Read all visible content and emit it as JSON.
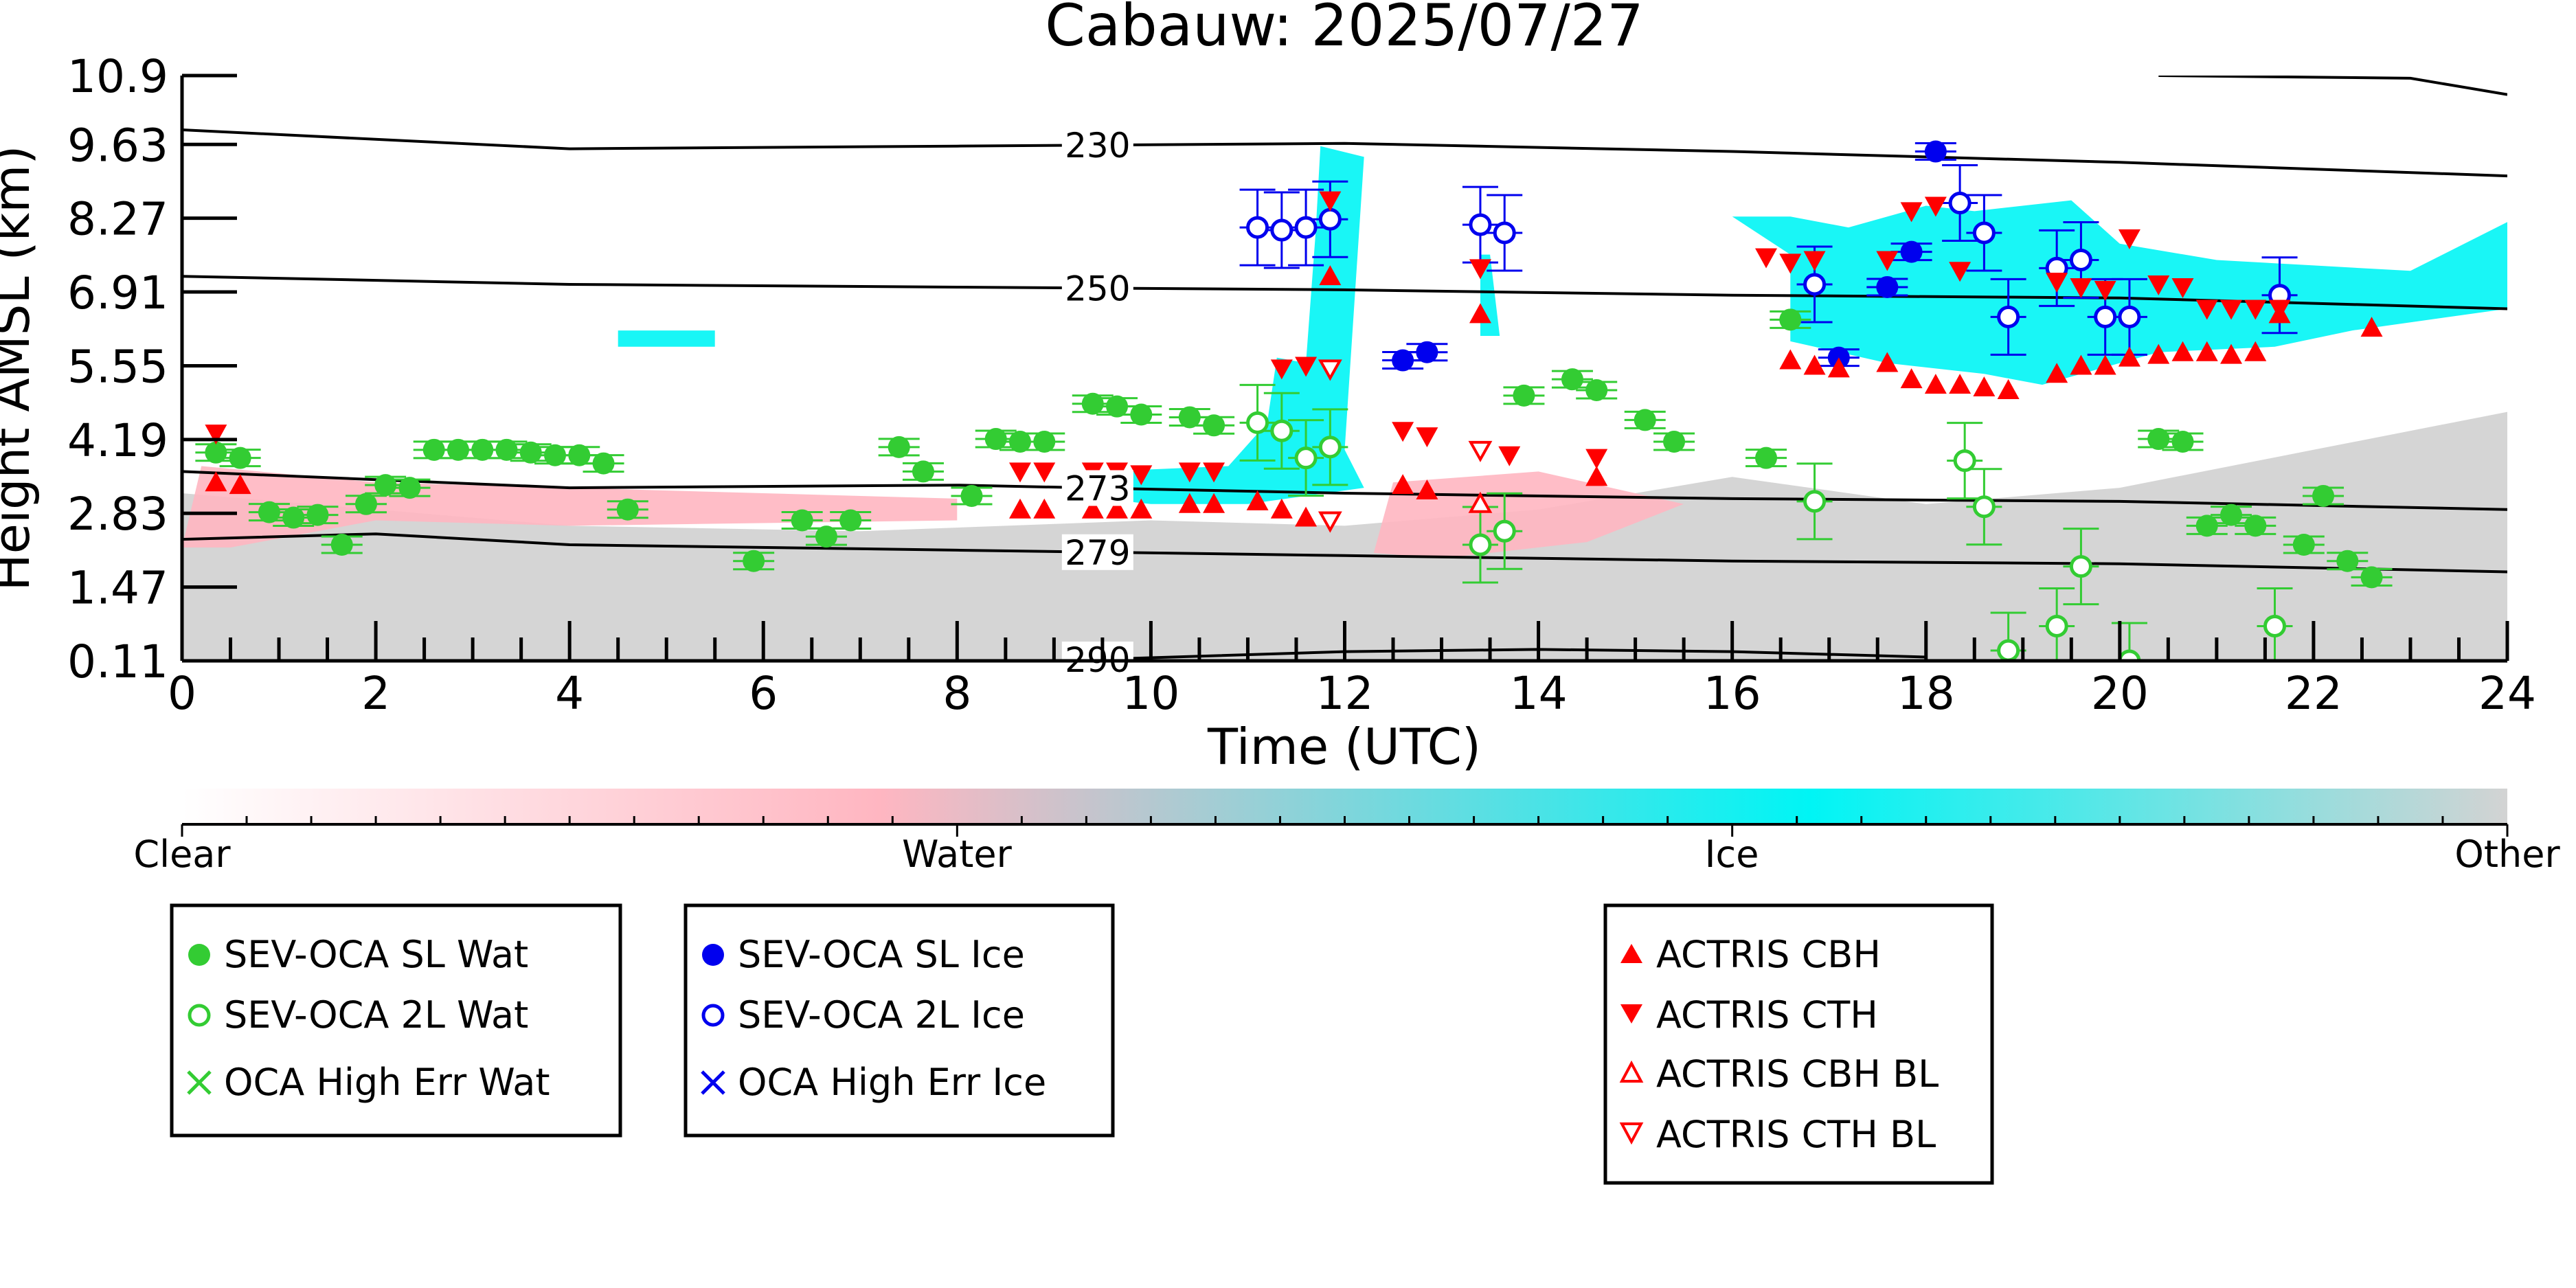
{
  "chart_data": {
    "type": "scatter",
    "title": "Cabauw: 2025/07/27",
    "xlabel": "Time (UTC)",
    "ylabel": "Height AMSL (km)",
    "xlim": [
      0,
      24
    ],
    "ylim": [
      0.11,
      10.9
    ],
    "x_ticks": [
      "0",
      "2",
      "4",
      "6",
      "8",
      "10",
      "12",
      "14",
      "16",
      "18",
      "20",
      "22",
      "24"
    ],
    "y_ticks": [
      "0.11",
      "1.47",
      "2.83",
      "4.19",
      "5.55",
      "6.91",
      "8.27",
      "9.63",
      "10.9"
    ],
    "colorbar": {
      "labels": [
        "Clear",
        "Water",
        "Ice",
        "Other"
      ],
      "stops": [
        "#ffffff",
        "#ffb6c1",
        "#00f5f5",
        "#d3d3d3"
      ]
    },
    "contours": [
      {
        "label": "230",
        "points": [
          [
            0,
            9.9
          ],
          [
            4,
            9.55
          ],
          [
            8,
            9.6
          ],
          [
            12,
            9.65
          ],
          [
            16,
            9.5
          ],
          [
            20,
            9.3
          ],
          [
            24,
            9.05
          ]
        ]
      },
      {
        "label": "250",
        "points": [
          [
            0,
            7.2
          ],
          [
            4,
            7.05
          ],
          [
            8,
            7.0
          ],
          [
            12,
            6.95
          ],
          [
            16,
            6.85
          ],
          [
            20,
            6.8
          ],
          [
            24,
            6.6
          ]
        ]
      },
      {
        "label": "273",
        "points": [
          [
            0,
            3.6
          ],
          [
            4,
            3.3
          ],
          [
            8,
            3.35
          ],
          [
            12,
            3.2
          ],
          [
            16,
            3.1
          ],
          [
            20,
            3.05
          ],
          [
            24,
            2.9
          ]
        ]
      },
      {
        "label": "279",
        "points": [
          [
            0,
            2.35
          ],
          [
            2,
            2.45
          ],
          [
            4,
            2.25
          ],
          [
            8,
            2.15
          ],
          [
            12,
            2.05
          ],
          [
            16,
            1.95
          ],
          [
            20,
            1.9
          ],
          [
            24,
            1.75
          ]
        ]
      },
      {
        "label": "290",
        "points": [
          [
            9,
            0.11
          ],
          [
            12,
            0.28
          ],
          [
            14,
            0.32
          ],
          [
            16,
            0.28
          ],
          [
            18,
            0.18
          ]
        ]
      },
      {
        "label": "",
        "points": [
          [
            20.4,
            10.9
          ],
          [
            23,
            10.85
          ],
          [
            24,
            10.55
          ]
        ]
      }
    ],
    "cloud_regions": [
      {
        "kind": "Other",
        "color": "#d3d3d3",
        "points": [
          [
            0,
            0.11
          ],
          [
            0,
            3.2
          ],
          [
            2,
            2.9
          ],
          [
            4,
            2.6
          ],
          [
            7,
            2.5
          ],
          [
            10,
            2.7
          ],
          [
            12,
            2.6
          ],
          [
            14,
            2.9
          ],
          [
            16,
            3.5
          ],
          [
            18,
            3.0
          ],
          [
            20,
            3.3
          ],
          [
            22,
            4.0
          ],
          [
            24,
            4.7
          ],
          [
            24,
            0.11
          ]
        ]
      },
      {
        "kind": "Water",
        "color": "#ffb6c1",
        "points": [
          [
            0,
            2.2
          ],
          [
            0.2,
            3.7
          ],
          [
            2,
            3.4
          ],
          [
            4,
            3.3
          ],
          [
            6,
            3.2
          ],
          [
            8,
            3.1
          ],
          [
            8,
            2.7
          ],
          [
            4,
            2.6
          ],
          [
            2,
            2.7
          ],
          [
            0.5,
            2.2
          ]
        ]
      },
      {
        "kind": "Water",
        "color": "#ffb6c1",
        "points": [
          [
            12.3,
            2.1
          ],
          [
            12.5,
            3.4
          ],
          [
            14,
            3.6
          ],
          [
            15.5,
            3.0
          ],
          [
            14.5,
            2.3
          ],
          [
            13,
            2.0
          ]
        ]
      },
      {
        "kind": "Ice",
        "color": "#00f5f5",
        "points": [
          [
            4.5,
            5.9
          ],
          [
            4.5,
            6.2
          ],
          [
            5.5,
            6.2
          ],
          [
            5.5,
            5.9
          ]
        ]
      },
      {
        "kind": "Ice",
        "color": "#00f5f5",
        "points": [
          [
            9.5,
            3.1
          ],
          [
            9.5,
            3.6
          ],
          [
            10.8,
            3.7
          ],
          [
            11.2,
            4.5
          ],
          [
            11.3,
            5.7
          ],
          [
            11.6,
            5.6
          ],
          [
            11.7,
            8.0
          ],
          [
            11.75,
            9.6
          ],
          [
            12.2,
            9.4
          ],
          [
            12.0,
            4.0
          ],
          [
            12.2,
            3.3
          ],
          [
            11.0,
            3.0
          ],
          [
            10.0,
            3.0
          ]
        ]
      },
      {
        "kind": "Ice",
        "color": "#00f5f5",
        "points": [
          [
            13.4,
            6.1
          ],
          [
            13.4,
            7.6
          ],
          [
            13.5,
            7.6
          ],
          [
            13.6,
            6.1
          ]
        ]
      },
      {
        "kind": "Ice",
        "color": "#00f5f5",
        "points": [
          [
            16.0,
            8.3
          ],
          [
            16.6,
            7.6
          ],
          [
            16.6,
            6.0
          ],
          [
            17.6,
            5.6
          ],
          [
            18.6,
            5.4
          ],
          [
            19.2,
            5.2
          ],
          [
            20.4,
            5.8
          ],
          [
            21.6,
            5.9
          ],
          [
            22.4,
            6.2
          ],
          [
            24,
            6.6
          ],
          [
            24,
            8.2
          ],
          [
            23,
            7.3
          ],
          [
            22,
            7.4
          ],
          [
            21,
            7.5
          ],
          [
            20,
            7.8
          ],
          [
            19.5,
            8.6
          ],
          [
            18.5,
            8.4
          ],
          [
            18.0,
            8.5
          ],
          [
            17.2,
            8.1
          ],
          [
            16.6,
            8.3
          ]
        ]
      }
    ],
    "series": [
      {
        "name": "SEV-OCA SL Wat",
        "marker": "filled-circle",
        "color": "#33cc33",
        "points": [
          [
            0.35,
            3.95
          ],
          [
            0.6,
            3.85
          ],
          [
            0.9,
            2.85
          ],
          [
            1.15,
            2.75
          ],
          [
            1.4,
            2.8
          ],
          [
            1.65,
            2.25
          ],
          [
            1.9,
            3.0
          ],
          [
            2.1,
            3.35
          ],
          [
            2.35,
            3.3
          ],
          [
            2.6,
            4.0
          ],
          [
            2.85,
            4.0
          ],
          [
            3.1,
            4.0
          ],
          [
            3.35,
            4.0
          ],
          [
            3.6,
            3.95
          ],
          [
            3.85,
            3.9
          ],
          [
            4.1,
            3.9
          ],
          [
            4.35,
            3.75
          ],
          [
            4.6,
            2.9
          ],
          [
            5.9,
            1.95
          ],
          [
            6.4,
            2.7
          ],
          [
            6.65,
            2.4
          ],
          [
            6.9,
            2.7
          ],
          [
            7.4,
            4.05
          ],
          [
            7.65,
            3.6
          ],
          [
            8.15,
            3.15
          ],
          [
            8.4,
            4.2
          ],
          [
            8.65,
            4.15
          ],
          [
            8.9,
            4.15
          ],
          [
            9.4,
            4.85
          ],
          [
            9.65,
            4.8
          ],
          [
            9.9,
            4.65
          ],
          [
            10.4,
            4.6
          ],
          [
            10.65,
            4.45
          ],
          [
            13.85,
            5.0
          ],
          [
            14.35,
            5.3
          ],
          [
            14.6,
            5.1
          ],
          [
            15.1,
            4.55
          ],
          [
            15.4,
            4.15
          ],
          [
            16.35,
            3.85
          ],
          [
            16.6,
            6.4
          ],
          [
            20.4,
            4.2
          ],
          [
            20.65,
            4.15
          ],
          [
            20.9,
            2.6
          ],
          [
            21.15,
            2.8
          ],
          [
            21.4,
            2.6
          ],
          [
            21.9,
            2.25
          ],
          [
            22.1,
            3.15
          ],
          [
            22.35,
            1.95
          ],
          [
            22.6,
            1.65
          ]
        ]
      },
      {
        "name": "SEV-OCA 2L Wat",
        "marker": "open-circle",
        "color": "#33cc33",
        "points": [
          [
            11.1,
            4.5
          ],
          [
            11.35,
            4.35
          ],
          [
            11.6,
            3.85
          ],
          [
            11.85,
            4.05
          ],
          [
            13.4,
            2.25
          ],
          [
            13.65,
            2.5
          ],
          [
            16.85,
            3.05
          ],
          [
            18.4,
            3.8
          ],
          [
            18.6,
            2.95
          ],
          [
            18.85,
            0.3
          ],
          [
            19.35,
            0.75
          ],
          [
            19.6,
            1.85
          ],
          [
            20.1,
            0.11
          ],
          [
            21.6,
            0.75
          ]
        ]
      },
      {
        "name": "OCA High Err Wat",
        "marker": "x",
        "color": "#33cc33",
        "points": []
      },
      {
        "name": "SEV-OCA SL Ice",
        "marker": "filled-circle",
        "color": "#0000ee",
        "points": [
          [
            12.6,
            5.65
          ],
          [
            12.85,
            5.8
          ],
          [
            17.1,
            5.7
          ],
          [
            17.6,
            7.0
          ],
          [
            17.85,
            7.65
          ],
          [
            18.1,
            9.5
          ]
        ]
      },
      {
        "name": "SEV-OCA 2L Ice",
        "marker": "open-circle",
        "color": "#0000ee",
        "points": [
          [
            11.1,
            8.1
          ],
          [
            11.35,
            8.05
          ],
          [
            11.6,
            8.1
          ],
          [
            11.85,
            8.25
          ],
          [
            13.4,
            8.15
          ],
          [
            13.65,
            8.0
          ],
          [
            16.85,
            7.05
          ],
          [
            18.35,
            8.55
          ],
          [
            18.6,
            8.0
          ],
          [
            18.85,
            6.45
          ],
          [
            19.35,
            7.35
          ],
          [
            19.6,
            7.5
          ],
          [
            19.85,
            6.45
          ],
          [
            20.1,
            6.45
          ],
          [
            21.65,
            6.85
          ]
        ]
      },
      {
        "name": "OCA High Err Ice",
        "marker": "x",
        "color": "#0000ee",
        "points": []
      },
      {
        "name": "ACTRIS CBH",
        "marker": "triangle-up",
        "color": "#ff0000",
        "points": [
          [
            0.35,
            3.4
          ],
          [
            0.6,
            3.35
          ],
          [
            8.65,
            2.9
          ],
          [
            8.9,
            2.9
          ],
          [
            9.4,
            2.9
          ],
          [
            9.65,
            2.9
          ],
          [
            9.9,
            2.9
          ],
          [
            10.4,
            3.0
          ],
          [
            10.65,
            3.0
          ],
          [
            11.1,
            3.05
          ],
          [
            11.35,
            2.9
          ],
          [
            11.6,
            2.75
          ],
          [
            11.85,
            7.2
          ],
          [
            12.6,
            3.35
          ],
          [
            12.85,
            3.25
          ],
          [
            13.4,
            6.5
          ],
          [
            14.6,
            3.5
          ],
          [
            16.6,
            5.65
          ],
          [
            16.85,
            5.55
          ],
          [
            17.1,
            5.5
          ],
          [
            17.6,
            5.6
          ],
          [
            17.85,
            5.3
          ],
          [
            18.1,
            5.2
          ],
          [
            18.35,
            5.2
          ],
          [
            18.6,
            5.15
          ],
          [
            18.85,
            5.1
          ],
          [
            19.35,
            5.4
          ],
          [
            19.6,
            5.55
          ],
          [
            19.85,
            5.55
          ],
          [
            20.1,
            5.7
          ],
          [
            20.4,
            5.75
          ],
          [
            20.65,
            5.8
          ],
          [
            20.9,
            5.8
          ],
          [
            21.15,
            5.75
          ],
          [
            21.4,
            5.8
          ],
          [
            21.65,
            6.5
          ],
          [
            22.6,
            6.25
          ]
        ]
      },
      {
        "name": "ACTRIS CTH",
        "marker": "triangle-down",
        "color": "#ff0000",
        "points": [
          [
            0.35,
            4.3
          ],
          [
            8.65,
            3.6
          ],
          [
            8.9,
            3.6
          ],
          [
            9.4,
            3.6
          ],
          [
            9.65,
            3.6
          ],
          [
            9.9,
            3.55
          ],
          [
            10.4,
            3.6
          ],
          [
            10.65,
            3.6
          ],
          [
            11.35,
            5.5
          ],
          [
            11.6,
            5.55
          ],
          [
            11.85,
            8.6
          ],
          [
            12.6,
            4.35
          ],
          [
            12.85,
            4.25
          ],
          [
            13.4,
            7.35
          ],
          [
            13.7,
            3.9
          ],
          [
            14.6,
            3.85
          ],
          [
            16.35,
            7.55
          ],
          [
            16.6,
            7.45
          ],
          [
            16.85,
            7.5
          ],
          [
            17.6,
            7.5
          ],
          [
            17.85,
            8.4
          ],
          [
            18.1,
            8.5
          ],
          [
            18.35,
            7.3
          ],
          [
            19.35,
            7.1
          ],
          [
            19.6,
            7.0
          ],
          [
            19.85,
            6.95
          ],
          [
            20.1,
            7.9
          ],
          [
            20.4,
            7.05
          ],
          [
            20.65,
            7.0
          ],
          [
            20.9,
            6.6
          ],
          [
            21.15,
            6.6
          ],
          [
            21.4,
            6.6
          ],
          [
            21.65,
            6.6
          ]
        ]
      },
      {
        "name": "ACTRIS CBH BL",
        "marker": "open-triangle-up",
        "color": "#ff0000",
        "points": [
          [
            13.4,
            3.0
          ]
        ]
      },
      {
        "name": "ACTRIS CTH BL",
        "marker": "open-triangle-down",
        "color": "#ff0000",
        "points": [
          [
            11.85,
            5.5
          ],
          [
            11.85,
            2.7
          ],
          [
            13.4,
            4.0
          ]
        ]
      }
    ],
    "legends": [
      {
        "entries": [
          "SEV-OCA SL Wat",
          "SEV-OCA 2L Wat",
          "OCA High Err Wat"
        ]
      },
      {
        "entries": [
          "SEV-OCA SL Ice",
          "SEV-OCA 2L Ice",
          "OCA High Err Ice"
        ]
      },
      {
        "entries": [
          "ACTRIS CBH",
          "ACTRIS CTH",
          "ACTRIS CBH BL",
          "ACTRIS CTH BL"
        ]
      }
    ]
  }
}
